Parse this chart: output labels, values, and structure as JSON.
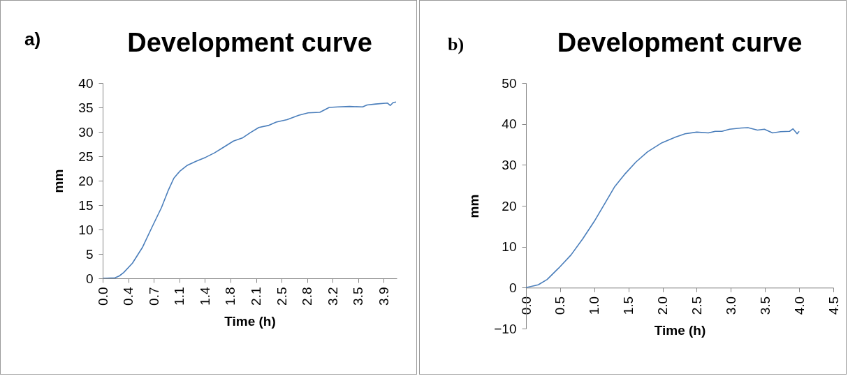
{
  "chart_data": [
    {
      "type": "line",
      "title": "Development curve",
      "annotations": [
        "a)"
      ],
      "xlabel": "Time (h)",
      "ylabel": "mm",
      "xlim": [
        0,
        4.05
      ],
      "ylim": [
        0,
        40
      ],
      "xticks": [
        {
          "value": 0,
          "label": "0.0"
        },
        {
          "value": 0.352,
          "label": "0.4"
        },
        {
          "value": 0.704,
          "label": "0.7"
        },
        {
          "value": 1.056,
          "label": "1.1"
        },
        {
          "value": 1.408,
          "label": "1.4"
        },
        {
          "value": 1.76,
          "label": "1.8"
        },
        {
          "value": 2.112,
          "label": "2.1"
        },
        {
          "value": 2.464,
          "label": "2.5"
        },
        {
          "value": 2.816,
          "label": "2.8"
        },
        {
          "value": 3.168,
          "label": "3.2"
        },
        {
          "value": 3.52,
          "label": "3.5"
        },
        {
          "value": 3.872,
          "label": "3.9"
        }
      ],
      "yticks": [
        0,
        5,
        10,
        15,
        20,
        25,
        30,
        35,
        40
      ],
      "x": [
        0,
        0.17,
        0.23,
        0.29,
        0.41,
        0.55,
        0.68,
        0.81,
        0.9,
        0.98,
        1.06,
        1.16,
        1.29,
        1.42,
        1.54,
        1.67,
        1.8,
        1.93,
        2.03,
        2.15,
        2.28,
        2.39,
        2.54,
        2.7,
        2.83,
        2.99,
        3.12,
        3.24,
        3.4,
        3.58,
        3.64,
        3.76,
        3.92,
        3.96,
        4.0,
        4.04
      ],
      "series": [
        {
          "color": "#4a7ebb",
          "values": [
            0,
            0.1,
            0.5,
            1.2,
            3.1,
            6.4,
            10.5,
            14.5,
            17.9,
            20.5,
            21.9,
            23.1,
            24.0,
            24.8,
            25.7,
            26.9,
            28.1,
            28.8,
            29.8,
            30.9,
            31.3,
            32.0,
            32.5,
            33.4,
            33.9,
            34.0,
            35.0,
            35.1,
            35.2,
            35.1,
            35.5,
            35.7,
            35.9,
            35.4,
            36.0,
            36.1
          ]
        }
      ]
    },
    {
      "type": "line",
      "title": "Development curve",
      "annotations": [
        "b)"
      ],
      "xlabel": "Time (h)",
      "ylabel": "mm",
      "xlim": [
        0,
        4.5
      ],
      "ylim": [
        -10,
        50
      ],
      "xticks": [
        {
          "value": 0,
          "label": "0.0"
        },
        {
          "value": 0.5,
          "label": "0.5"
        },
        {
          "value": 1,
          "label": "1.0"
        },
        {
          "value": 1.5,
          "label": "1.5"
        },
        {
          "value": 2,
          "label": "2.0"
        },
        {
          "value": 2.5,
          "label": "2.5"
        },
        {
          "value": 3,
          "label": "3.0"
        },
        {
          "value": 3.5,
          "label": "3.5"
        },
        {
          "value": 4,
          "label": "4.0"
        },
        {
          "value": 4.5,
          "label": "4.5"
        }
      ],
      "yticks": [
        -10,
        0,
        10,
        20,
        30,
        40,
        50
      ],
      "x": [
        0,
        0.18,
        0.31,
        0.48,
        0.66,
        0.83,
        1.0,
        1.17,
        1.3,
        1.44,
        1.61,
        1.78,
        1.99,
        2.19,
        2.33,
        2.5,
        2.67,
        2.77,
        2.87,
        2.98,
        3.15,
        3.25,
        3.39,
        3.49,
        3.61,
        3.73,
        3.86,
        3.91,
        3.97,
        4.0
      ],
      "series": [
        {
          "color": "#4a7ebb",
          "values": [
            0,
            0.7,
            2.0,
            4.8,
            8.0,
            11.9,
            16.2,
            21.0,
            24.7,
            27.6,
            30.7,
            33.2,
            35.4,
            36.8,
            37.6,
            38.0,
            37.8,
            38.2,
            38.2,
            38.7,
            39.0,
            39.1,
            38.5,
            38.7,
            37.8,
            38.1,
            38.2,
            38.8,
            37.6,
            38.2
          ]
        }
      ]
    }
  ]
}
